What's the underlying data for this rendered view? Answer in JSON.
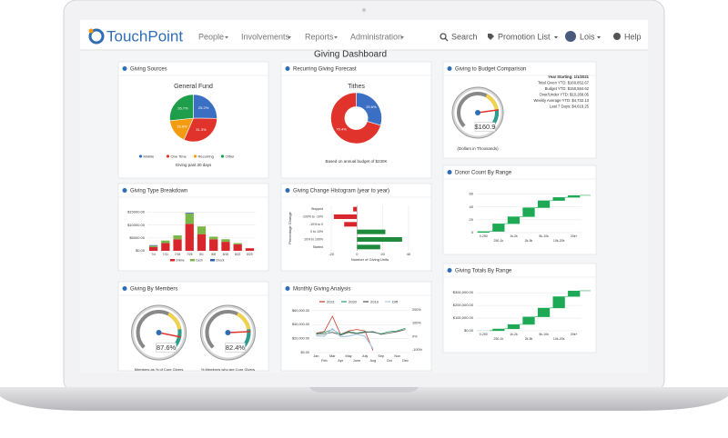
{
  "nav": {
    "brand": "TouchPoint",
    "items": [
      "People",
      "Involvements",
      "Reports",
      "Administration"
    ],
    "search": "Search",
    "promotion": "Promotion List",
    "user": "Lois",
    "help": "Help"
  },
  "title": "Giving Dashboard",
  "panels": [
    {
      "title": "Giving Sources",
      "chart": {
        "type": "pie",
        "title": "General Fund",
        "categories": [
          "Mobile",
          "One Time",
          "Recurring",
          "Other"
        ],
        "values": [
          25.2,
          31.3,
          16.8,
          26.7
        ],
        "value_labels": [
          "25.2%",
          "31.3%",
          "16.8%",
          "26.7%"
        ],
        "colors": [
          "#3a6fc4",
          "#e0332b",
          "#f39c12",
          "#1e9e4a"
        ],
        "note": "Giving past 30 days"
      }
    },
    {
      "title": "Recurring Giving Forecast",
      "chart": {
        "type": "pie",
        "donut": true,
        "title": "Tithes",
        "values": [
          29.6,
          70.4
        ],
        "value_labels": [
          "29.6%",
          "70.4%"
        ],
        "colors": [
          "#3a6fc4",
          "#e0332b"
        ],
        "note": "Based on annual budget of $230K"
      }
    },
    {
      "title": "Giving to Budget Comparison",
      "chart": {
        "type": "gauge",
        "ylim": [
          0,
          200
        ],
        "values": [
          160.9
        ],
        "value_labels": [
          "$160.9"
        ],
        "text_lines": [
          "Year Starting: 1/1/2021",
          "Total Given YTD: $160,852.67",
          "Budget YTD: $150,584.62",
          "Over/Under YTD: $10,268.05",
          "Weekly Average YTD: $4,732.13",
          "Last 7 Days: $4,619.25"
        ],
        "note": "(Dollars in Thousands)"
      }
    },
    {
      "title": "Giving Type Breakdown",
      "chart": {
        "type": "stacked_bar",
        "categories": [
          "7/4",
          "7/11",
          "7/18",
          "7/25",
          "8/1",
          "8/8",
          "8/15",
          "8/22",
          "8/29"
        ],
        "series": [
          {
            "name": "Online",
            "color": "#d9262c",
            "values": [
              1500,
              3000,
              4500,
              10500,
              6500,
              4500,
              3500,
              2500,
              1000
            ]
          },
          {
            "name": "Cash",
            "color": "#7ab648",
            "values": [
              500,
              1000,
              1500,
              4000,
              3000,
              1000,
              1000,
              500,
              0
            ]
          },
          {
            "name": "Check",
            "color": "#2a5db0",
            "values": [
              200,
              0,
              0,
              300,
              0,
              0,
              0,
              0,
              0
            ]
          }
        ],
        "ylim": [
          0,
          17000
        ],
        "yticks": [
          {
            "value": 0,
            "label": "$0.00"
          },
          {
            "value": 5000,
            "label": "$5000.00"
          },
          {
            "value": 10000,
            "label": "$10000.00"
          },
          {
            "value": 15000,
            "label": "$15000.00"
          }
        ],
        "grid": true
      }
    },
    {
      "title": "Giving Change Histogram (year to year)",
      "chart": {
        "type": "hbar",
        "categories": [
          "Stopped",
          "-100% to -10%",
          "-10% to 0",
          "0 to 10%",
          "10% to 100%",
          "Started"
        ],
        "values": [
          -3,
          -18,
          -10,
          22,
          35,
          18
        ],
        "colors": [
          "#d9262c",
          "#d9262c",
          "#d9262c",
          "#1e8a3c",
          "#1e8a3c",
          "#1e8a3c"
        ],
        "xlim": [
          -25,
          45
        ],
        "xticks": [
          -20,
          0,
          20,
          40
        ],
        "ylabel": "Percentage Change",
        "xlabel": "Number of Giving Units",
        "grid": true
      }
    },
    {
      "title": "Donor Count By Range",
      "chart": {
        "type": "waterfall",
        "categories": [
          "0-250",
          "250-1k",
          "1k-2k",
          "2k-5k",
          "5k-10k",
          "10k-20k",
          "20k+"
        ],
        "values": [
          2,
          12,
          11,
          14,
          11,
          5,
          3
        ],
        "color": "#1eaa55",
        "ylim": [
          0,
          65
        ],
        "yticks": [
          0,
          20,
          40,
          60
        ],
        "grid": true
      }
    },
    {
      "title": "Giving By Members",
      "chart": {
        "type": "gauge",
        "ylim": [
          0,
          100
        ],
        "values": [
          87.6,
          82.4
        ],
        "value_labels": [
          "87.6%",
          "82.4%"
        ],
        "labels": [
          "Members as % of Core Givers",
          "% Members who are Core Givers"
        ]
      }
    },
    {
      "title": "Monthly Giving Analysis",
      "chart": {
        "type": "line",
        "categories": [
          "Jan",
          "Feb",
          "Mar",
          "Apr",
          "May",
          "June",
          "July",
          "Aug",
          "Sep",
          "Oct",
          "Nov",
          "Dec"
        ],
        "series": [
          {
            "name": "2021",
            "color": "#c0392b",
            "values": [
              28000,
              30000,
              52000,
              26000,
              31000,
              33000,
              31000,
              3000,
              null,
              null,
              null,
              null
            ]
          },
          {
            "name": "2020",
            "color": "#2e9e6a",
            "values": [
              27000,
              29000,
              33000,
              26000,
              30000,
              28000,
              30000,
              29000,
              27000,
              30000,
              31000,
              35000
            ]
          },
          {
            "name": "2019",
            "color": "#555555",
            "values": [
              26000,
              27000,
              29000,
              25000,
              29000,
              27000,
              29000,
              30000,
              26000,
              28000,
              30000,
              33000
            ]
          },
          {
            "name": "Diff",
            "color": "#a6c8e0",
            "axis": "y2",
            "values": [
              5,
              3,
              60,
              0,
              3,
              18,
              3,
              -90,
              null,
              null,
              null,
              null
            ]
          }
        ],
        "ylim": [
          0,
          65000
        ],
        "yticks": [
          {
            "value": 0,
            "label": "$0.00"
          },
          {
            "value": 20000,
            "label": "$20,000.00"
          },
          {
            "value": 40000,
            "label": "$40,000.00"
          },
          {
            "value": 60000,
            "label": "$60,000.00"
          }
        ],
        "y2lim": [
          -120,
          220
        ],
        "y2ticks": [
          {
            "value": -100,
            "label": "-100%"
          },
          {
            "value": 0,
            "label": "0%"
          },
          {
            "value": 100,
            "label": "100%"
          },
          {
            "value": 200,
            "label": "200%"
          }
        ],
        "grid": true
      }
    },
    {
      "title": "Giving Totals By Range",
      "chart": {
        "type": "waterfall",
        "categories": [
          "0-250",
          "250-1k",
          "1k-2k",
          "2k-5k",
          "5k-10k",
          "10k-20k",
          "20k+"
        ],
        "values": [
          1000,
          15000,
          35000,
          60000,
          70000,
          90000,
          45000
        ],
        "color": "#1eaa55",
        "ylim": [
          0,
          330000
        ],
        "yticks": [
          {
            "value": 0,
            "label": "$0.00"
          },
          {
            "value": 100000,
            "label": "$100,000.00"
          },
          {
            "value": 200000,
            "label": "$200,000.00"
          },
          {
            "value": 300000,
            "label": "$300,000.00"
          }
        ],
        "grid": true
      }
    }
  ]
}
